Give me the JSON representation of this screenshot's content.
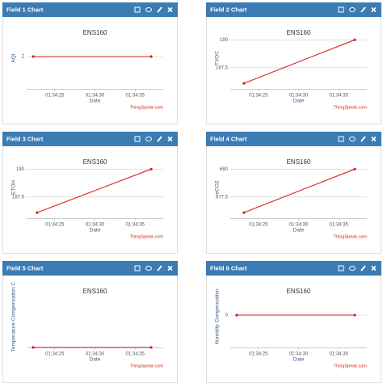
{
  "chart_data": [
    {
      "type": "line",
      "header": "Field 1 Chart",
      "title": "ENS160",
      "ylabel": "AQI",
      "xlabel": "Date",
      "credit": "ThingSpeak.com",
      "x": [
        22.3,
        37
      ],
      "values": [
        2,
        2
      ],
      "color": "#d62020",
      "xlim": [
        21.5,
        38.5
      ],
      "ylim": [
        1,
        3
      ],
      "yticks": [
        2
      ],
      "xticks": [
        {
          "value": 25,
          "label": "01:34:25"
        },
        {
          "value": 30,
          "label": "01:34:30"
        },
        {
          "value": 35,
          "label": "01:34:35"
        }
      ],
      "grid": true
    },
    {
      "type": "line",
      "header": "Field 2 Chart",
      "title": "ENS160",
      "ylabel": "TVOC",
      "xlabel": "Date",
      "credit": "ThingSpeak.com",
      "x": [
        23.2,
        37
      ],
      "values": [
        186.1,
        190
      ],
      "color": "#d62020",
      "xlim": [
        21.5,
        38.5
      ],
      "ylim": [
        185.6,
        191.4
      ],
      "yticks": [
        190,
        187.5
      ],
      "xticks": [
        {
          "value": 25,
          "label": "01:34:25"
        },
        {
          "value": 30,
          "label": "01:34:30"
        },
        {
          "value": 35,
          "label": "01:34:35"
        }
      ],
      "grid": true
    },
    {
      "type": "line",
      "header": "Field 3 Chart",
      "title": "ENS160",
      "ylabel": "ETOH",
      "xlabel": "Date",
      "credit": "ThingSpeak.com",
      "x": [
        22.8,
        37
      ],
      "values": [
        186.1,
        190
      ],
      "color": "#d62020",
      "xlim": [
        21.5,
        38.5
      ],
      "ylim": [
        185.6,
        191.4
      ],
      "yticks": [
        190,
        187.5
      ],
      "xticks": [
        {
          "value": 25,
          "label": "01:34:25"
        },
        {
          "value": 30,
          "label": "01:34:30"
        },
        {
          "value": 35,
          "label": "01:34:35"
        }
      ],
      "grid": true
    },
    {
      "type": "line",
      "header": "Field 4 Chart",
      "title": "ENS160",
      "ylabel": "eCO2",
      "xlabel": "Date",
      "credit": "ThingSpeak.com",
      "x": [
        23.2,
        37
      ],
      "values": [
        676.1,
        680
      ],
      "color": "#d62020",
      "xlim": [
        21.5,
        38.5
      ],
      "ylim": [
        675.6,
        681.4
      ],
      "yticks": [
        680,
        677.5
      ],
      "xticks": [
        {
          "value": 25,
          "label": "01:34:25"
        },
        {
          "value": 30,
          "label": "01:34:30"
        },
        {
          "value": 35,
          "label": "01:34:35"
        }
      ],
      "grid": true
    },
    {
      "type": "line",
      "header": "Field 5 Chart",
      "title": "ENS160",
      "ylabel": "Temperature Compensation C",
      "xlabel": "Date",
      "credit": "ThingSpeak.com",
      "x": [
        22.3,
        37
      ],
      "values": [
        0,
        0
      ],
      "color": "#d62020",
      "xlim": [
        21.5,
        38.5
      ],
      "ylim": [
        0,
        1
      ],
      "yticks": [],
      "xticks": [
        {
          "value": 25,
          "label": "01:34:25"
        },
        {
          "value": 30,
          "label": "01:34:30"
        },
        {
          "value": 35,
          "label": "01:34:35"
        }
      ],
      "grid": true
    },
    {
      "type": "line",
      "header": "Field 6 Chart",
      "title": "ENS160",
      "ylabel": "Humidity Compensation",
      "xlabel": "Date",
      "credit": "ThingSpeak.com",
      "x": [
        22.3,
        37
      ],
      "values": [
        0,
        0
      ],
      "color": "#d62020",
      "xlim": [
        21.5,
        38.5
      ],
      "ylim": [
        -1,
        1
      ],
      "yticks": [
        0
      ],
      "xticks": [
        {
          "value": 25,
          "label": "01:34:25"
        },
        {
          "value": 30,
          "label": "01:34:30"
        },
        {
          "value": 35,
          "label": "01:34:35"
        }
      ],
      "grid": true
    }
  ]
}
